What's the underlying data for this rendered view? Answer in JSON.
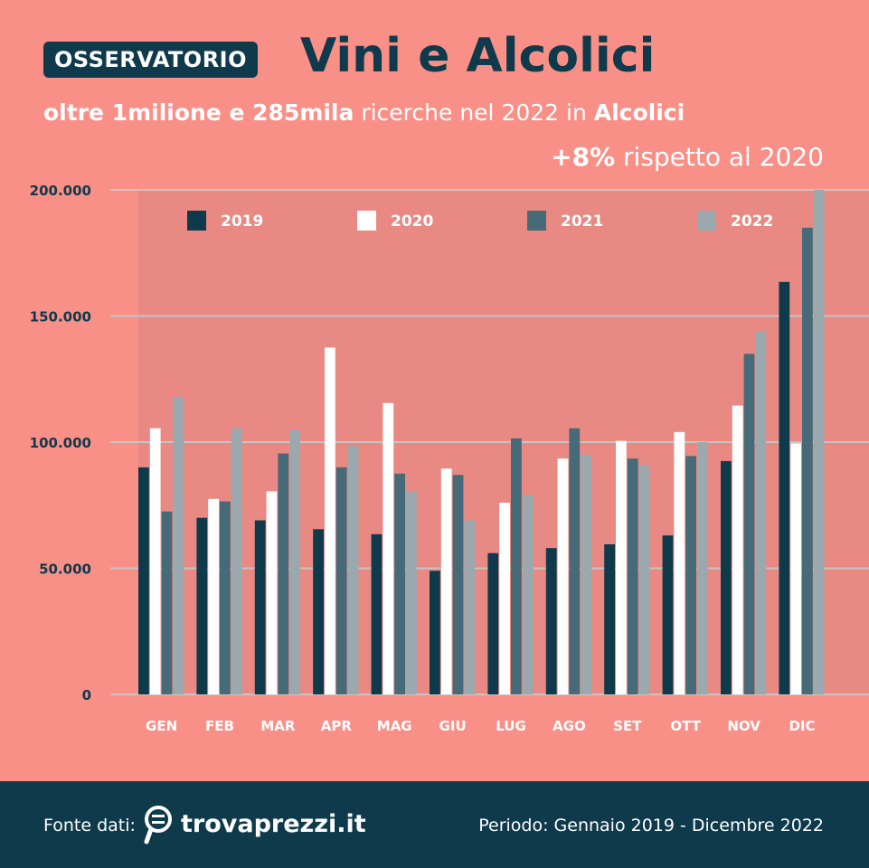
{
  "header": {
    "badge": "OSSERVATORIO",
    "title": "Vini e Alcolici",
    "subtitle_bold1": "oltre 1milione e 285mila",
    "subtitle_text": " ricerche nel 2022 in ",
    "subtitle_bold2": "Alcolici",
    "delta_bold": "+8%",
    "delta_text": " rispetto al 2020"
  },
  "footer": {
    "source_label": "Fonte dati:",
    "logo_text": "trovaprezzi.it",
    "period": "Periodo: Gennaio 2019 - Dicembre 2022"
  },
  "colors": {
    "background": "#f99088",
    "dark": "#0e3a4b",
    "2019": "#0e3a4b",
    "2020": "#ffffff",
    "2021": "#466a78",
    "2022": "#9ba9ae"
  },
  "chart_data": {
    "type": "bar",
    "title": "",
    "xlabel": "",
    "ylabel": "",
    "ylim": [
      0,
      200000
    ],
    "yticks": [
      0,
      50000,
      100000,
      150000,
      200000
    ],
    "ytick_labels": [
      "0",
      "50.000",
      "100.000",
      "150.000",
      "200.000"
    ],
    "grid": true,
    "legend_position": "top",
    "categories": [
      "GEN",
      "FEB",
      "MAR",
      "APR",
      "MAG",
      "GIU",
      "LUG",
      "AGO",
      "SET",
      "OTT",
      "NOV",
      "DIC"
    ],
    "series": [
      {
        "name": "2019",
        "color": "#0e3a4b",
        "values": [
          90000,
          70000,
          69000,
          65500,
          63500,
          49000,
          56000,
          58000,
          59500,
          63000,
          92500,
          163500
        ]
      },
      {
        "name": "2020",
        "color": "#ffffff",
        "values": [
          105500,
          77500,
          80500,
          137500,
          115500,
          89500,
          76000,
          93500,
          100500,
          104000,
          114500,
          99500
        ]
      },
      {
        "name": "2021",
        "color": "#466a78",
        "values": [
          72500,
          76500,
          95500,
          90000,
          87500,
          87000,
          101500,
          105500,
          93500,
          94500,
          135000,
          185000
        ]
      },
      {
        "name": "2022",
        "color": "#9ba9ae",
        "values": [
          118000,
          105500,
          105000,
          98500,
          80500,
          69000,
          79000,
          95000,
          91000,
          100000,
          144000,
          200000
        ]
      }
    ]
  }
}
